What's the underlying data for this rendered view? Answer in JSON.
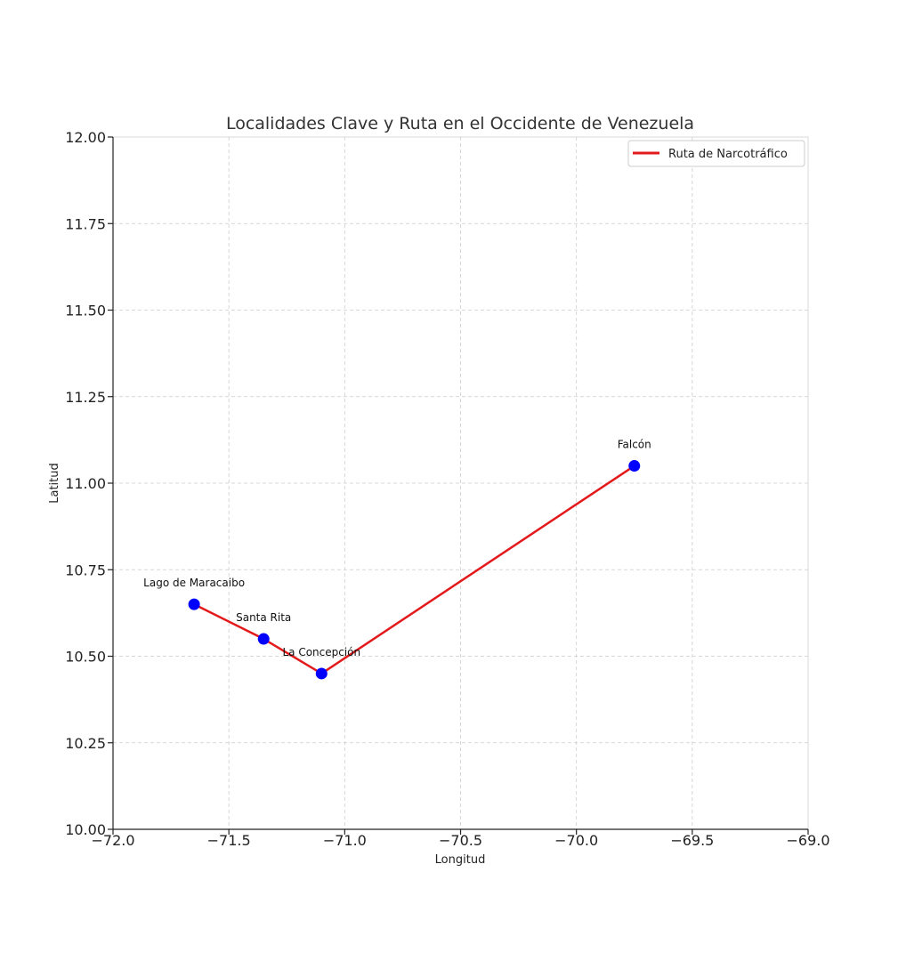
{
  "chart_data": {
    "type": "line",
    "title": "Localidades Clave y Ruta en el Occidente de Venezuela",
    "xlabel": "Longitud",
    "ylabel": "Latitud",
    "xlim": [
      -72.0,
      -69.0
    ],
    "ylim": [
      10.0,
      12.0
    ],
    "xticks": [
      -72.0,
      -71.5,
      -71.0,
      -70.5,
      -70.0,
      -69.5,
      -69.0
    ],
    "xtick_labels": [
      "−72.0",
      "−71.5",
      "−71.0",
      "−70.5",
      "−70.0",
      "−69.5",
      "−69.0"
    ],
    "yticks": [
      10.0,
      10.25,
      10.5,
      10.75,
      11.0,
      11.25,
      11.5,
      11.75,
      12.0
    ],
    "ytick_labels": [
      "10.00",
      "10.25",
      "10.50",
      "10.75",
      "11.00",
      "11.25",
      "11.50",
      "11.75",
      "12.00"
    ],
    "grid": true,
    "legend_position": "top-right",
    "points": [
      {
        "label": "Lago de Maracaibo",
        "x": -71.65,
        "y": 10.65
      },
      {
        "label": "Santa Rita",
        "x": -71.35,
        "y": 10.55
      },
      {
        "label": "La Concepción",
        "x": -71.1,
        "y": 10.45
      },
      {
        "label": "Falcón",
        "x": -69.75,
        "y": 11.05
      }
    ],
    "series": [
      {
        "name": "Ruta de Narcotráfico",
        "color": "#e31a1c",
        "x": [
          -71.65,
          -71.35,
          -71.1,
          -69.75
        ],
        "y": [
          10.65,
          10.55,
          10.45,
          11.05
        ]
      }
    ],
    "marker_color": "#0000ff"
  }
}
